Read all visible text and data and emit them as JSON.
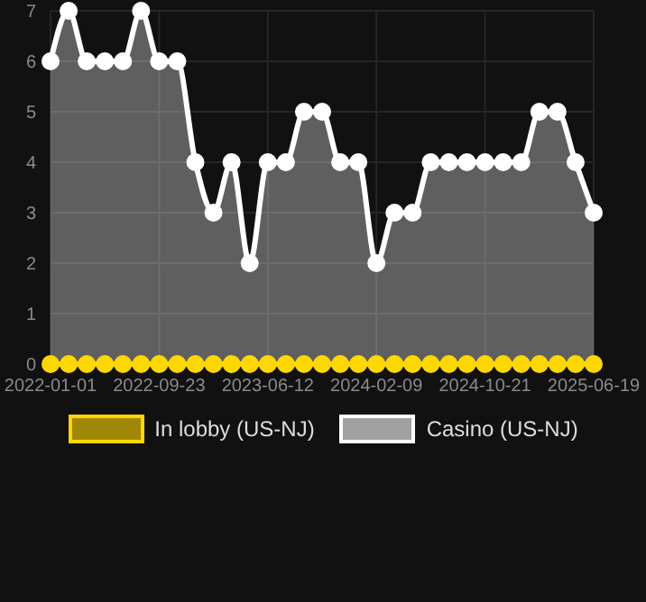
{
  "chart_data": {
    "type": "area",
    "categories": [
      "2022-01-01",
      null,
      null,
      null,
      null,
      null,
      "2022-09-23",
      null,
      null,
      null,
      null,
      null,
      "2023-06-12",
      null,
      null,
      null,
      null,
      null,
      "2024-02-09",
      null,
      null,
      null,
      null,
      null,
      "2024-10-21",
      null,
      null,
      null,
      null,
      null,
      "2025-06-19"
    ],
    "series": [
      {
        "name": "In lobby (US-NJ)",
        "type": "line",
        "color": "#ffd700",
        "values": [
          0,
          0,
          0,
          0,
          0,
          0,
          0,
          0,
          0,
          0,
          0,
          0,
          0,
          0,
          0,
          0,
          0,
          0,
          0,
          0,
          0,
          0,
          0,
          0,
          0,
          0,
          0,
          0,
          0,
          0,
          0
        ]
      },
      {
        "name": "Casino (US-NJ)",
        "color": "#ffffff",
        "values": [
          6,
          7,
          6,
          6,
          6,
          7,
          6,
          6,
          4,
          3,
          4,
          2,
          4,
          4,
          5,
          5,
          4,
          4,
          2,
          3,
          3,
          4,
          4,
          4,
          4,
          4,
          4,
          5,
          5,
          4,
          3
        ]
      }
    ],
    "ylim": [
      0,
      7
    ],
    "yticks": [
      0,
      1,
      2,
      3,
      4,
      5,
      6,
      7
    ],
    "grid": true,
    "legend": "bottom",
    "marker": "circle"
  }
}
